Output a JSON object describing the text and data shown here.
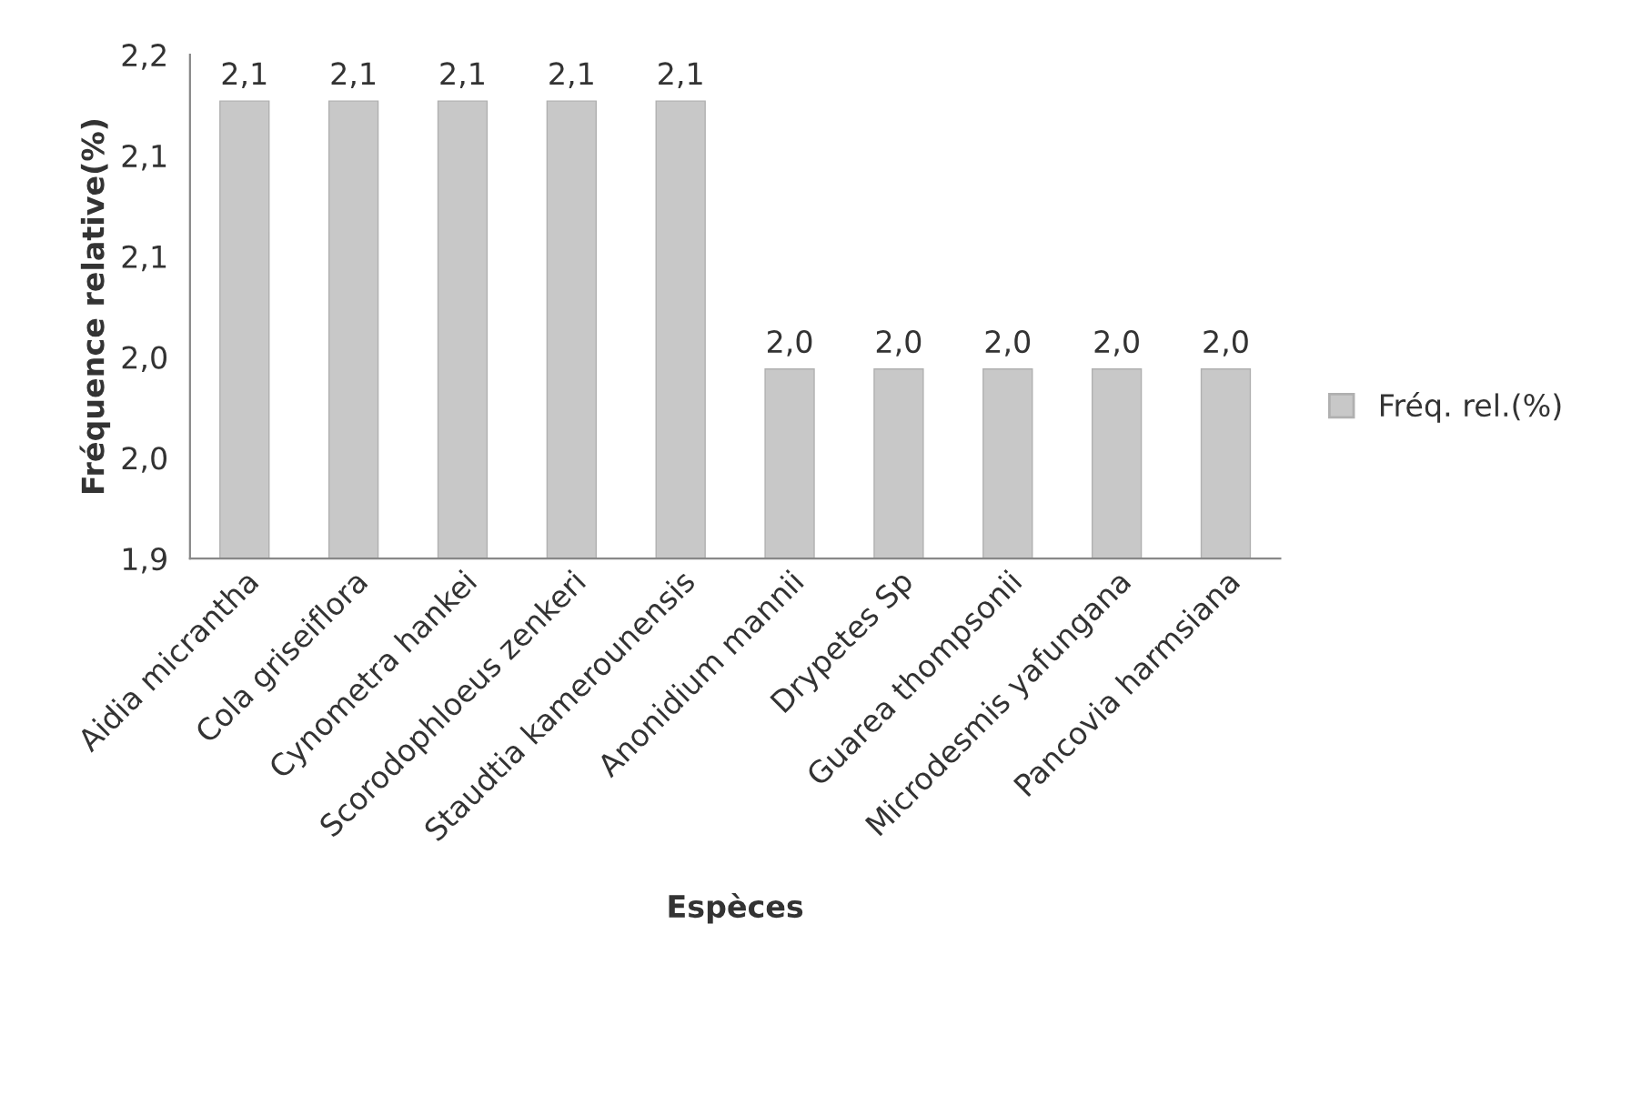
{
  "chart_data": {
    "type": "bar",
    "xlabel": "Espèces",
    "ylabel": "Fréquence relative(%)",
    "categories": [
      "Aidia micrantha",
      "Cola griseiflora",
      "Cynometra hankei",
      "Scorodophloeus zenkeri",
      "Staudtia kamerounensis",
      "Anonidium mannii",
      "Drypetes Sp",
      "Guarea thompsonii",
      "Microdesmis yafungana",
      "Pancovia harmsiana"
    ],
    "series": [
      {
        "name": "Fréq. rel.(%)",
        "color": "#c8c8c8",
        "values": [
          2.127,
          2.127,
          2.127,
          2.127,
          2.127,
          1.994,
          1.994,
          1.994,
          1.994,
          1.994
        ],
        "value_labels": [
          "2,1",
          "2,1",
          "2,1",
          "2,1",
          "2,1",
          "2,0",
          "2,0",
          "2,0",
          "2,0",
          "2,0"
        ]
      }
    ],
    "ylim": [
      1.9,
      2.15
    ],
    "yticks": [
      {
        "value": 1.9,
        "label": "1,9"
      },
      {
        "value": 1.95,
        "label": "2,0"
      },
      {
        "value": 2.0,
        "label": "2,0"
      },
      {
        "value": 2.05,
        "label": "2,1"
      },
      {
        "value": 2.1,
        "label": "2,1"
      },
      {
        "value": 2.15,
        "label": "2,2"
      }
    ],
    "grid": false,
    "legend": "right"
  }
}
